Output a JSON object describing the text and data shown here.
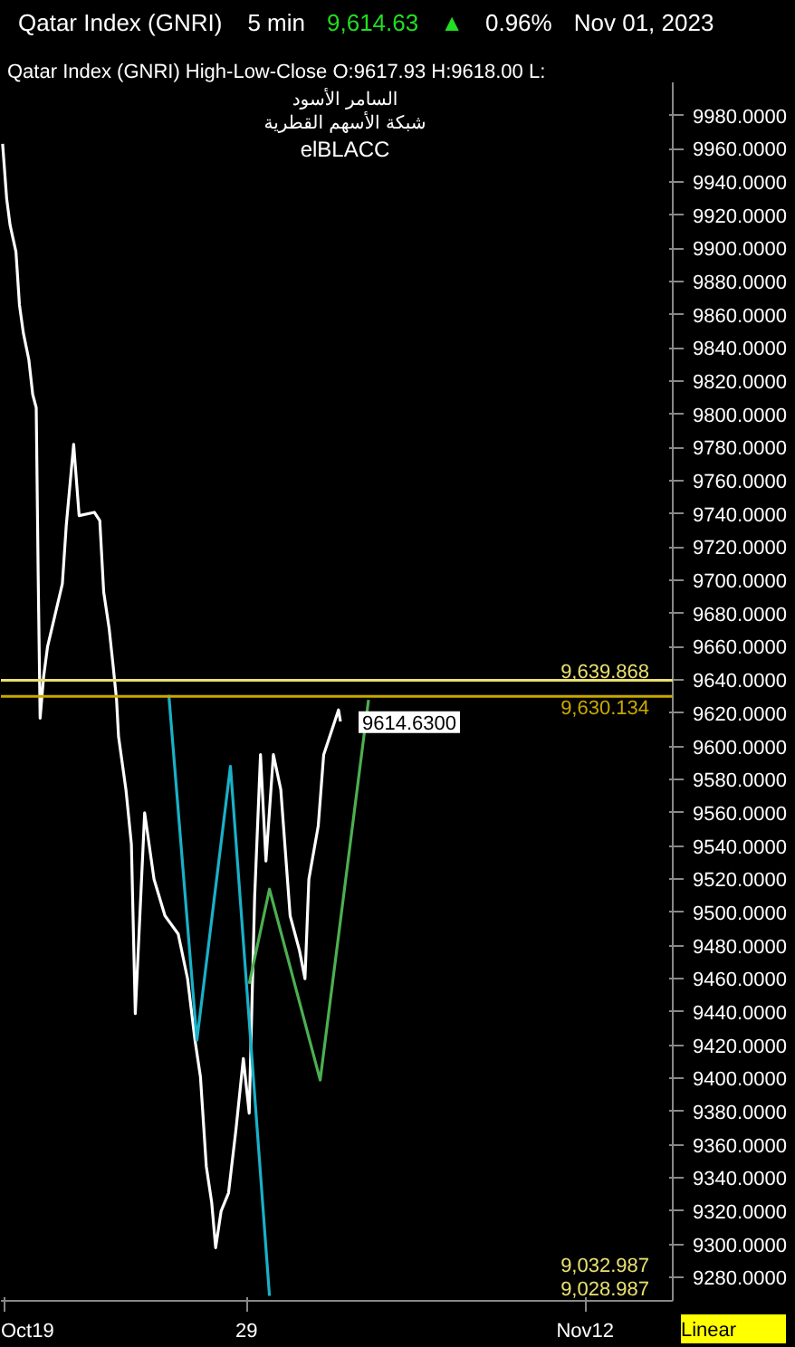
{
  "chart_data": {
    "type": "line",
    "title": "Qatar Index  (GNRI)",
    "subtitle": "Qatar Index (GNRI)  High-Low-Close    O:9617.93  H:9618.00  L:",
    "annotations": [
      "5 min",
      "9,614.63",
      "▲",
      "0.96%",
      "Nov 01, 2023",
      "السامر الأسود",
      "شبكة الأسهم القطرية",
      "elBLACC",
      "9,028.987",
      "9,032.987",
      "Linear",
      {
        "text": "9614.6300",
        "x": "2023-11-01T21:14",
        "y": 9614.63
      }
    ],
    "series": [
      {
        "color": "#ffffff",
        "x": [
          "2023-10-18T22:00",
          "2023-10-19T02:00",
          "2023-10-19T05:25",
          "2023-10-19T11:14",
          "2023-10-19T14:42",
          "2023-10-19T18:35",
          "2023-10-20T00:00",
          "2023-10-20T03:52",
          "2023-10-20T07:21",
          "2023-10-20T09:17",
          "2023-10-20T11:13",
          "2023-10-20T14:42",
          "2023-10-20T18:35",
          "2023-10-21T00:00",
          "2023-10-21T09:17",
          "2023-10-21T13:09",
          "2023-10-21T20:30",
          "2023-10-22T01:55",
          "2023-10-22T17:01",
          "2023-10-22T22:26",
          "2023-10-23T02:18",
          "2023-10-23T07:43",
          "2023-10-23T11:35",
          "2023-10-23T15:04",
          "2023-10-23T17:01",
          "2023-10-24T00:22",
          "2023-10-24T05:47",
          "2023-10-24T09:40",
          "2023-10-24T18:57",
          "2023-10-25T04:15",
          "2023-10-25T15:04",
          "2023-10-26T04:15",
          "2023-10-26T13:32",
          "2023-10-26T20:53",
          "2023-10-27T02:18",
          "2023-10-27T08:07",
          "2023-10-27T13:31",
          "2023-10-27T17:24",
          "2023-10-27T22:48",
          "2023-10-28T06:10",
          "2023-10-28T13:31",
          "2023-10-28T20:53",
          "2023-10-29T02:41",
          "2023-10-29T08:05",
          "2023-10-29T13:54",
          "2023-10-29T19:19",
          "2023-10-30T02:41",
          "2023-10-30T10:02",
          "2023-10-30T19:19",
          "2023-10-31T04:36",
          "2023-10-31T10:02",
          "2023-10-31T13:54",
          "2023-10-31T23:11",
          "2023-11-01T04:36",
          "2023-11-01T13:54",
          "2023-11-01T19:19",
          "2023-11-01T21:14"
        ],
        "values": [
          9963,
          9930,
          9914,
          9898,
          9866,
          9849,
          9833,
          9812,
          9804,
          9703,
          9617,
          9642,
          9660,
          9674,
          9698,
          9733,
          9782,
          9739,
          9741,
          9736,
          9693,
          9671,
          9649,
          9628,
          9606,
          9574,
          9541,
          9439,
          9560,
          9520,
          9498,
          9487,
          9460,
          9423,
          9401,
          9347,
          9325,
          9298,
          9320,
          9331,
          9369,
          9412,
          9379,
          9509,
          9595,
          9531,
          9595,
          9574,
          9498,
          9477,
          9460,
          9520,
          9552,
          9595,
          9612,
          9622,
          9615
        ]
      },
      {
        "color": "#1ab0c8",
        "x": [
          "2023-10-25T18:56",
          "2023-10-26T22:48",
          "2023-10-28T08:05",
          "2023-10-29T22:48"
        ],
        "values": [
          9631,
          9423,
          9588,
          9269
        ]
      },
      {
        "color": "#4caf50",
        "x": [
          "2023-10-29T02:41",
          "2023-10-29T22:48",
          "2023-11-01T01:08",
          "2023-11-03T01:06"
        ],
        "values": [
          9457,
          9514,
          9399,
          9628
        ]
      }
    ],
    "ref_lines": [
      {
        "axis": "y",
        "value": 9639.868,
        "label": "9,639.868",
        "color": "#e8e070"
      },
      {
        "axis": "y",
        "value": 9630.134,
        "label": "9,630.134",
        "color": "#c8a800"
      }
    ],
    "xlim": [
      "2023-10-18T20:18",
      "2023-11-15T15:00"
    ],
    "ylim": [
      9266,
      10000
    ],
    "xticks": [
      {
        "value": "2023-10-19",
        "label": "Oct19"
      },
      {
        "value": "2023-10-29",
        "label": "29"
      },
      {
        "value": "2023-11-12",
        "label": "Nov12"
      }
    ],
    "yticks": [
      {
        "value": 9280,
        "label": "9280.0000"
      },
      {
        "value": 9300,
        "label": "9300.0000"
      },
      {
        "value": 9320,
        "label": "9320.0000"
      },
      {
        "value": 9340,
        "label": "9340.0000"
      },
      {
        "value": 9360,
        "label": "9360.0000"
      },
      {
        "value": 9380,
        "label": "9380.0000"
      },
      {
        "value": 9400,
        "label": "9400.0000"
      },
      {
        "value": 9420,
        "label": "9420.0000"
      },
      {
        "value": 9440,
        "label": "9440.0000"
      },
      {
        "value": 9460,
        "label": "9460.0000"
      },
      {
        "value": 9480,
        "label": "9480.0000"
      },
      {
        "value": 9500,
        "label": "9500.0000"
      },
      {
        "value": 9520,
        "label": "9520.0000"
      },
      {
        "value": 9540,
        "label": "9540.0000"
      },
      {
        "value": 9560,
        "label": "9560.0000"
      },
      {
        "value": 9580,
        "label": "9580.0000"
      },
      {
        "value": 9600,
        "label": "9600.0000"
      },
      {
        "value": 9620,
        "label": "9620.0000"
      },
      {
        "value": 9640,
        "label": "9640.0000"
      },
      {
        "value": 9660,
        "label": "9660.0000"
      },
      {
        "value": 9680,
        "label": "9680.0000"
      },
      {
        "value": 9700,
        "label": "9700.0000"
      },
      {
        "value": 9720,
        "label": "9720.0000"
      },
      {
        "value": 9740,
        "label": "9740.0000"
      },
      {
        "value": 9760,
        "label": "9760.0000"
      },
      {
        "value": 9780,
        "label": "9780.0000"
      },
      {
        "value": 9800,
        "label": "9800.0000"
      },
      {
        "value": 9820,
        "label": "9820.0000"
      },
      {
        "value": 9840,
        "label": "9840.0000"
      },
      {
        "value": 9860,
        "label": "9860.0000"
      },
      {
        "value": 9880,
        "label": "9880.0000"
      },
      {
        "value": 9900,
        "label": "9900.0000"
      },
      {
        "value": 9920,
        "label": "9920.0000"
      },
      {
        "value": 9940,
        "label": "9940.0000"
      },
      {
        "value": 9960,
        "label": "9960.0000"
      },
      {
        "value": 9980,
        "label": "9980.0000"
      }
    ],
    "grid": false,
    "marker": "none",
    "line_style": "solid"
  }
}
